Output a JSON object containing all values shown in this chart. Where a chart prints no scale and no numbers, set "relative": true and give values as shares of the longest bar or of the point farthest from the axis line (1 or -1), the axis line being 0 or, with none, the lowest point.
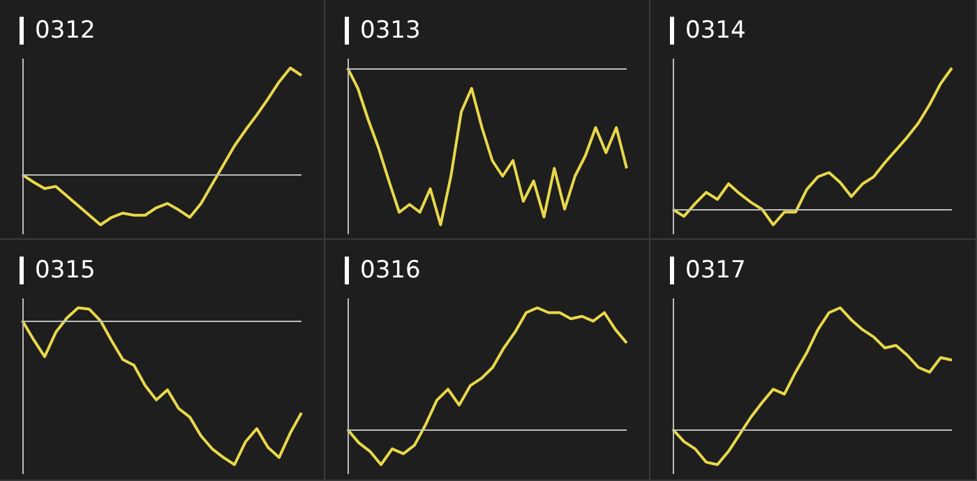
{
  "chart_data": [
    {
      "type": "line",
      "title": "0312",
      "relative": true,
      "legend": false,
      "marker": "none",
      "categories": [
        null,
        null,
        null,
        null,
        null,
        null,
        null,
        null,
        null,
        null,
        null,
        null,
        null,
        null,
        null,
        null,
        null,
        null,
        null,
        null,
        null,
        null,
        null,
        null,
        null,
        null
      ],
      "series": [
        {
          "color": "#e8d84a",
          "values": [
            0,
            -0.07,
            -0.13,
            -0.11,
            -0.2,
            -0.29,
            -0.38,
            -0.47,
            -0.4,
            -0.36,
            -0.38,
            -0.38,
            -0.31,
            -0.27,
            -0.33,
            -0.4,
            -0.27,
            -0.09,
            0.09,
            0.27,
            0.42,
            0.56,
            0.71,
            0.87,
            1,
            0.93
          ]
        }
      ]
    },
    {
      "type": "line",
      "title": "0313",
      "relative": true,
      "legend": false,
      "marker": "none",
      "categories": [
        null,
        null,
        null,
        null,
        null,
        null,
        null,
        null,
        null,
        null,
        null,
        null,
        null,
        null,
        null,
        null,
        null,
        null,
        null,
        null,
        null,
        null,
        null,
        null,
        null,
        null,
        null,
        null
      ],
      "series": [
        {
          "color": "#e8d84a",
          "values": [
            0,
            -0.13,
            -0.33,
            -0.51,
            -0.72,
            -0.92,
            -0.87,
            -0.92,
            -0.77,
            -1,
            -0.69,
            -0.28,
            -0.13,
            -0.38,
            -0.59,
            -0.69,
            -0.59,
            -0.85,
            -0.72,
            -0.95,
            -0.64,
            -0.9,
            -0.69,
            -0.56,
            -0.38,
            -0.54,
            -0.38,
            -0.64
          ]
        }
      ]
    },
    {
      "type": "line",
      "title": "0314",
      "relative": true,
      "legend": false,
      "marker": "none",
      "categories": [
        null,
        null,
        null,
        null,
        null,
        null,
        null,
        null,
        null,
        null,
        null,
        null,
        null,
        null,
        null,
        null,
        null,
        null,
        null,
        null,
        null,
        null,
        null,
        null,
        null,
        null
      ],
      "series": [
        {
          "color": "#e8d84a",
          "values": [
            0,
            -0.05,
            0.04,
            0.12,
            0.07,
            0.18,
            0.11,
            0.05,
            0,
            -0.11,
            -0.02,
            -0.02,
            0.14,
            0.23,
            0.26,
            0.19,
            0.09,
            0.18,
            0.23,
            0.33,
            0.42,
            0.51,
            0.61,
            0.74,
            0.89,
            1
          ]
        }
      ]
    },
    {
      "type": "line",
      "title": "0315",
      "relative": true,
      "legend": false,
      "marker": "none",
      "categories": [
        null,
        null,
        null,
        null,
        null,
        null,
        null,
        null,
        null,
        null,
        null,
        null,
        null,
        null,
        null,
        null,
        null,
        null,
        null,
        null,
        null,
        null,
        null,
        null,
        null,
        null
      ],
      "series": [
        {
          "color": "#e8d84a",
          "values": [
            0,
            -0.13,
            -0.25,
            -0.08,
            0.02,
            0.09,
            0.08,
            0,
            -0.14,
            -0.27,
            -0.31,
            -0.45,
            -0.55,
            -0.48,
            -0.61,
            -0.67,
            -0.8,
            -0.89,
            -0.95,
            -1,
            -0.84,
            -0.75,
            -0.88,
            -0.95,
            -0.78,
            -0.64
          ]
        }
      ]
    },
    {
      "type": "line",
      "title": "0316",
      "relative": true,
      "legend": false,
      "marker": "none",
      "categories": [
        null,
        null,
        null,
        null,
        null,
        null,
        null,
        null,
        null,
        null,
        null,
        null,
        null,
        null,
        null,
        null,
        null,
        null,
        null,
        null,
        null,
        null,
        null,
        null,
        null,
        null
      ],
      "series": [
        {
          "color": "#e8d84a",
          "values": [
            0,
            -0.11,
            -0.18,
            -0.29,
            -0.16,
            -0.2,
            -0.13,
            0.04,
            0.24,
            0.33,
            0.2,
            0.36,
            0.42,
            0.51,
            0.67,
            0.8,
            0.96,
            1,
            0.96,
            0.96,
            0.91,
            0.93,
            0.89,
            0.96,
            0.82,
            0.71
          ]
        }
      ]
    },
    {
      "type": "line",
      "title": "0317",
      "relative": true,
      "legend": false,
      "marker": "none",
      "categories": [
        null,
        null,
        null,
        null,
        null,
        null,
        null,
        null,
        null,
        null,
        null,
        null,
        null,
        null,
        null,
        null,
        null,
        null,
        null,
        null,
        null,
        null,
        null,
        null,
        null,
        null
      ],
      "series": [
        {
          "color": "#e8d84a",
          "values": [
            0,
            -0.1,
            -0.16,
            -0.27,
            -0.29,
            -0.18,
            -0.04,
            0.1,
            0.22,
            0.33,
            0.29,
            0.47,
            0.63,
            0.82,
            0.96,
            1,
            0.9,
            0.82,
            0.76,
            0.67,
            0.69,
            0.61,
            0.51,
            0.47,
            0.59,
            0.57
          ]
        }
      ]
    }
  ]
}
